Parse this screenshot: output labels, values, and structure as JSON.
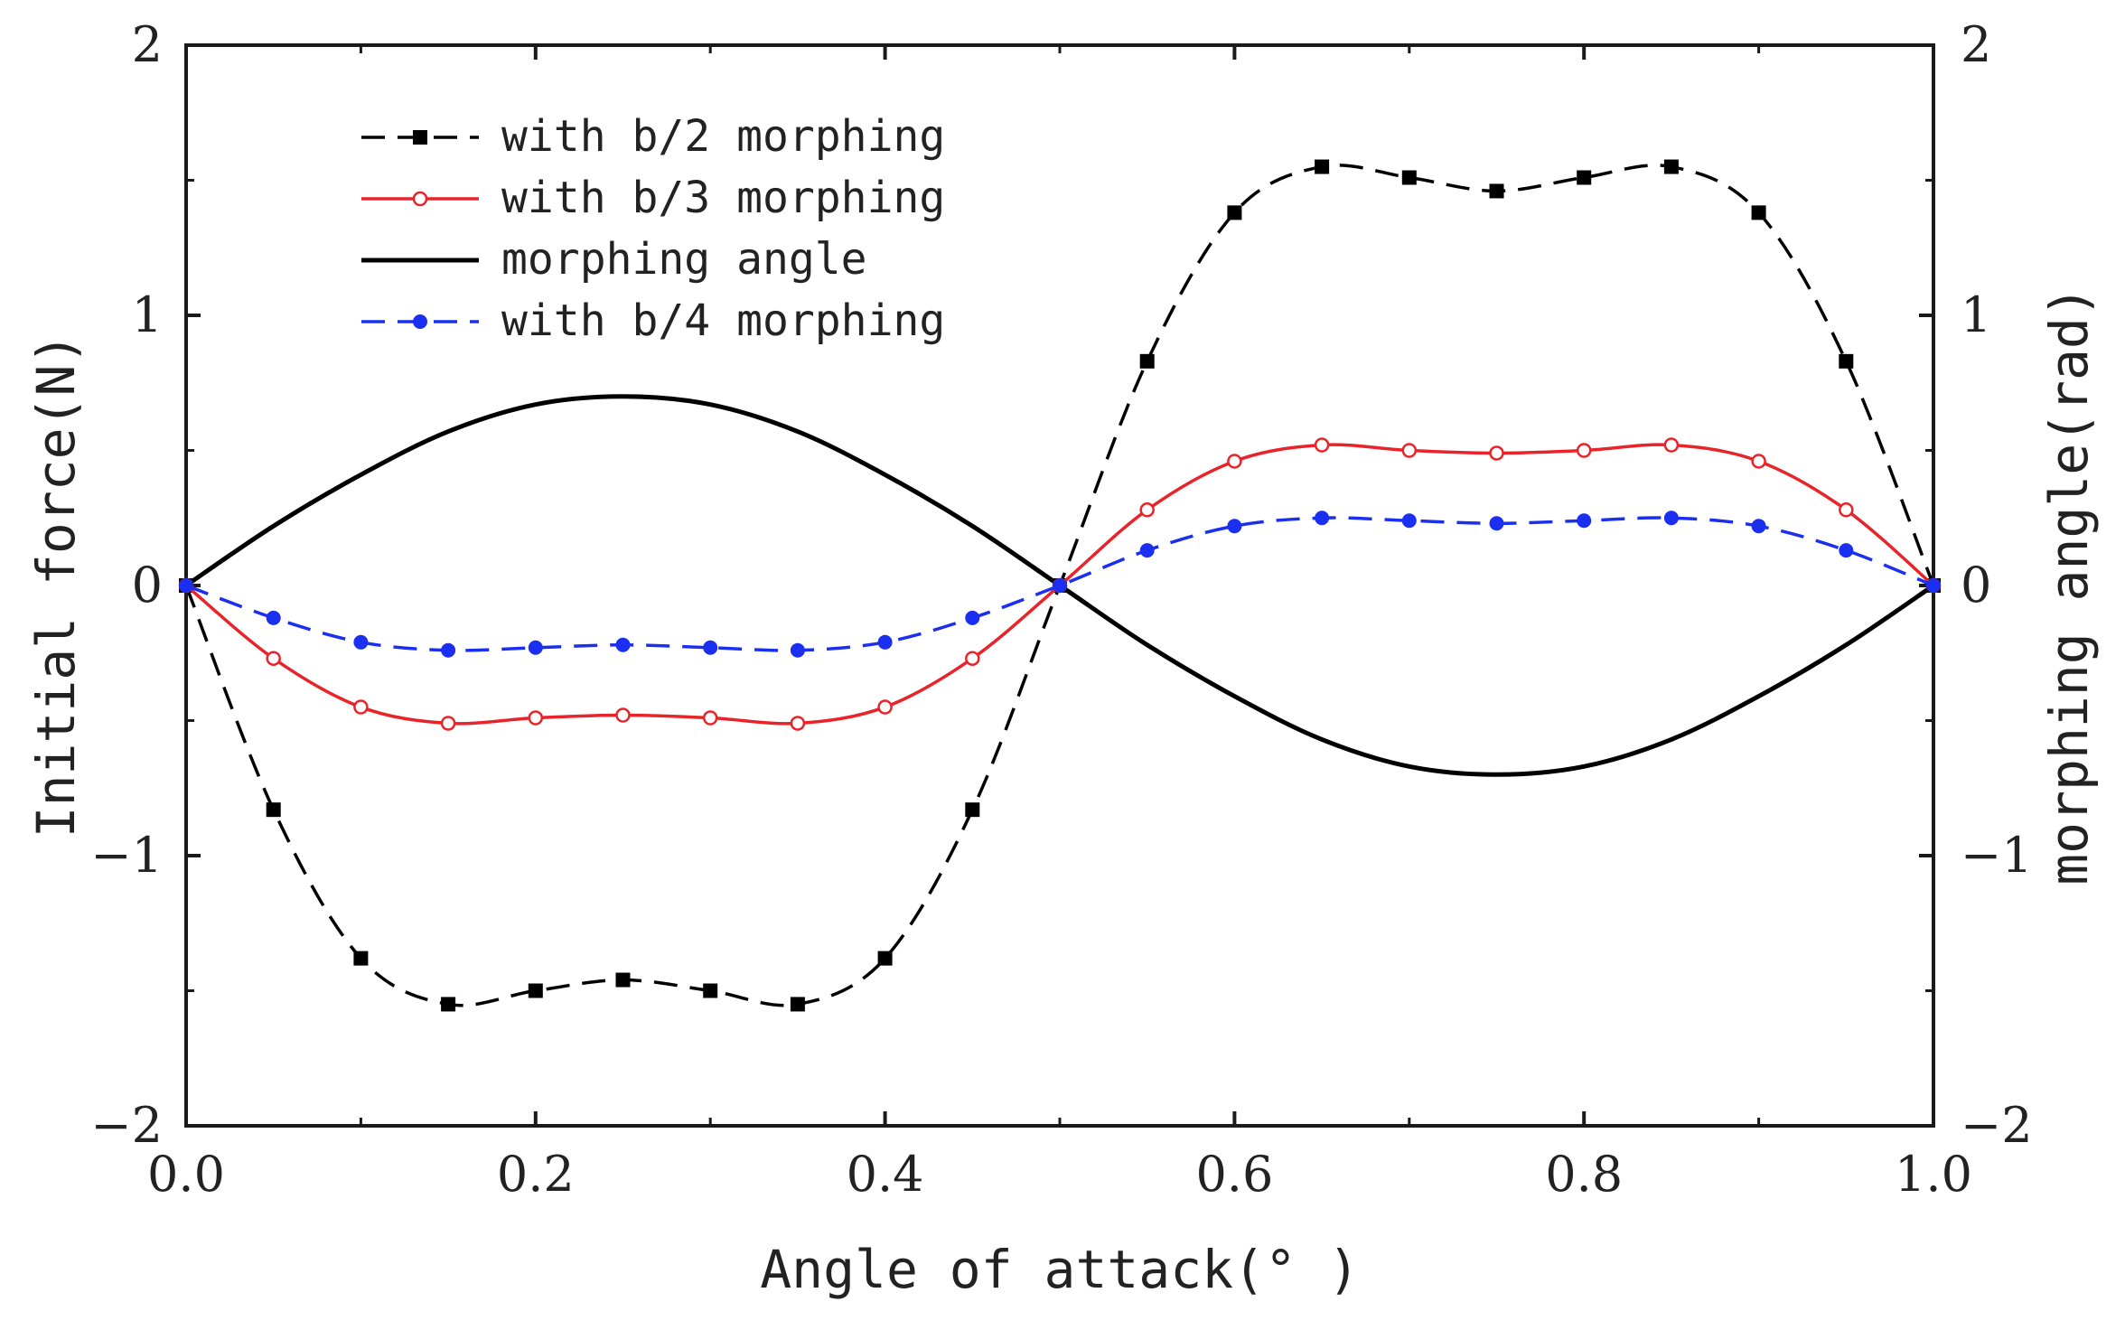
{
  "chart_data": {
    "type": "line",
    "title": "",
    "xlabel": "Angle of attack(° )",
    "ylabel_left": "Initial force(N)",
    "ylabel_right": "morphing angle(rad)",
    "xlim": [
      0.0,
      1.0
    ],
    "ylim_left": [
      -2,
      2
    ],
    "ylim_right": [
      -2,
      2
    ],
    "x_ticks": [
      0.0,
      0.2,
      0.4,
      0.6,
      0.8,
      1.0
    ],
    "x_tick_labels": [
      "0.0",
      "0.2",
      "0.4",
      "0.6",
      "0.8",
      "1.0"
    ],
    "y_ticks": [
      -2,
      -1,
      0,
      1,
      2
    ],
    "y_tick_labels": [
      "−2",
      "−1",
      "0",
      "1",
      "2"
    ],
    "legend_position": "top-left",
    "series": [
      {
        "name": "with b/2 morphing",
        "axis": "left",
        "color": "#000000",
        "line_style": "dashed",
        "marker": "square",
        "x": [
          0.0,
          0.05,
          0.1,
          0.15,
          0.2,
          0.25,
          0.3,
          0.35,
          0.4,
          0.45,
          0.5,
          0.55,
          0.6,
          0.65,
          0.7,
          0.75,
          0.8,
          0.85,
          0.9,
          0.95,
          1.0
        ],
        "values": [
          0.0,
          -0.83,
          -1.38,
          -1.55,
          -1.5,
          -1.46,
          -1.5,
          -1.55,
          -1.38,
          -0.83,
          0.0,
          0.83,
          1.38,
          1.55,
          1.51,
          1.46,
          1.51,
          1.55,
          1.38,
          0.83,
          0.0
        ]
      },
      {
        "name": "with b/3 morphing",
        "axis": "left",
        "color": "#e8242a",
        "line_style": "solid",
        "marker": "open-circle",
        "x": [
          0.0,
          0.05,
          0.1,
          0.15,
          0.2,
          0.25,
          0.3,
          0.35,
          0.4,
          0.45,
          0.5,
          0.55,
          0.6,
          0.65,
          0.7,
          0.75,
          0.8,
          0.85,
          0.9,
          0.95,
          1.0
        ],
        "values": [
          0.0,
          -0.27,
          -0.45,
          -0.51,
          -0.49,
          -0.48,
          -0.49,
          -0.51,
          -0.45,
          -0.27,
          0.0,
          0.28,
          0.46,
          0.52,
          0.5,
          0.49,
          0.5,
          0.52,
          0.46,
          0.28,
          0.0
        ]
      },
      {
        "name": "morphing angle",
        "axis": "right",
        "color": "#000000",
        "line_style": "solid",
        "marker": "none",
        "x": [
          0.0,
          0.05,
          0.1,
          0.15,
          0.2,
          0.25,
          0.3,
          0.35,
          0.4,
          0.45,
          0.5,
          0.55,
          0.6,
          0.65,
          0.7,
          0.75,
          0.8,
          0.85,
          0.9,
          0.95,
          1.0
        ],
        "values": [
          0.0,
          0.22,
          0.41,
          0.57,
          0.67,
          0.7,
          0.67,
          0.57,
          0.41,
          0.22,
          0.0,
          -0.22,
          -0.41,
          -0.57,
          -0.67,
          -0.7,
          -0.67,
          -0.57,
          -0.41,
          -0.22,
          0.0
        ]
      },
      {
        "name": "with b/4 morphing",
        "axis": "left",
        "color": "#1a2ff0",
        "line_style": "dashed",
        "marker": "filled-circle",
        "x": [
          0.0,
          0.05,
          0.1,
          0.15,
          0.2,
          0.25,
          0.3,
          0.35,
          0.4,
          0.45,
          0.5,
          0.55,
          0.6,
          0.65,
          0.7,
          0.75,
          0.8,
          0.85,
          0.9,
          0.95,
          1.0
        ],
        "values": [
          0.0,
          -0.12,
          -0.21,
          -0.24,
          -0.23,
          -0.22,
          -0.23,
          -0.24,
          -0.21,
          -0.12,
          0.0,
          0.13,
          0.22,
          0.25,
          0.24,
          0.23,
          0.24,
          0.25,
          0.22,
          0.13,
          0.0
        ]
      }
    ]
  }
}
